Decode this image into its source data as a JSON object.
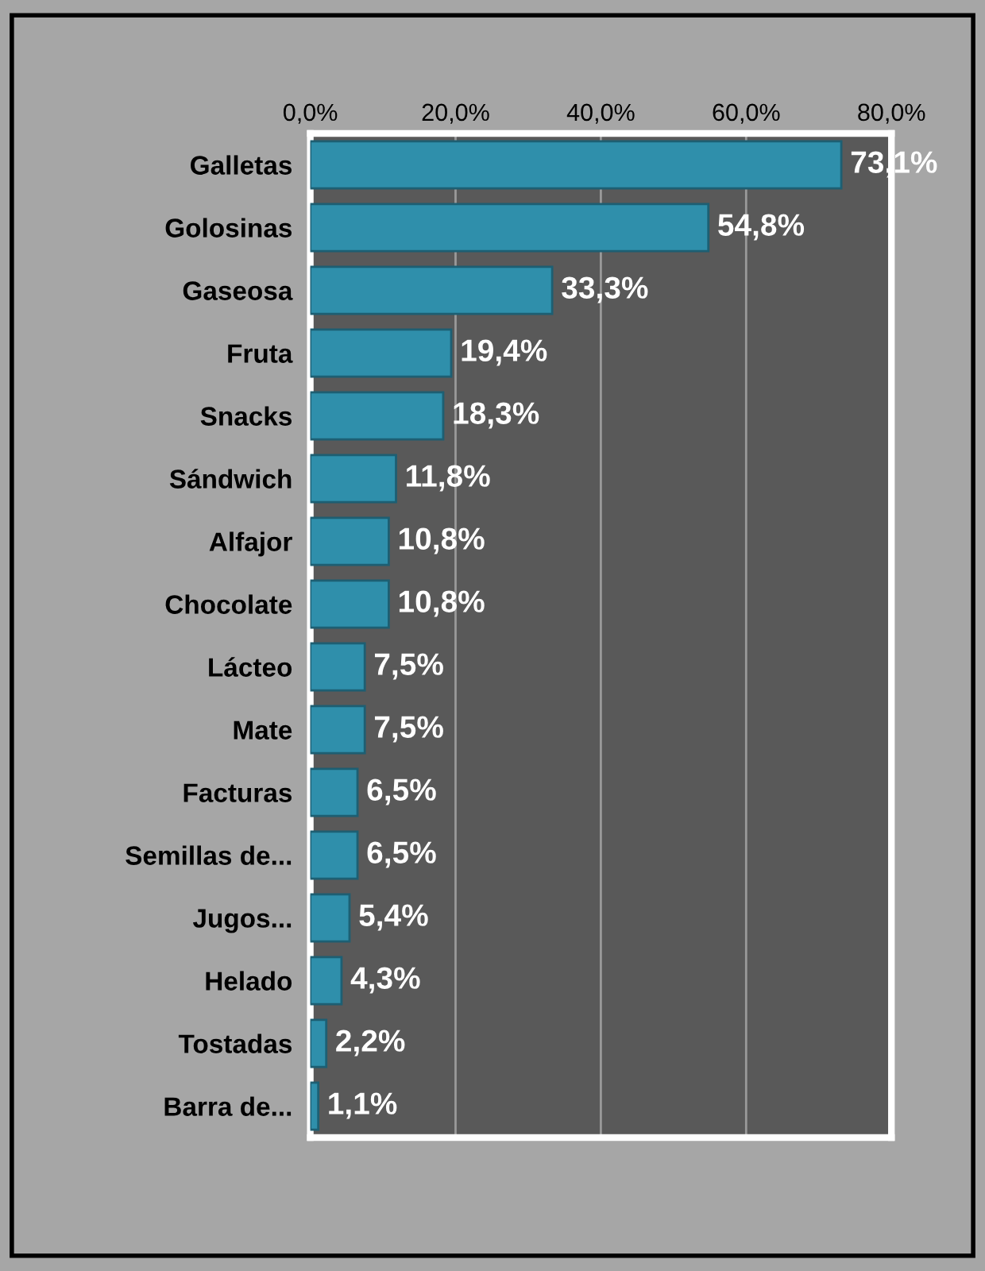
{
  "chart_data": {
    "type": "bar",
    "orientation": "horizontal",
    "categories": [
      "Galletas",
      "Golosinas",
      "Gaseosa",
      "Fruta",
      "Snacks",
      "Sándwich",
      "Alfajor",
      "Chocolate",
      "Lácteo",
      "Mate",
      "Facturas",
      "Semillas de...",
      "Jugos...",
      "Helado",
      "Tostadas",
      "Barra de..."
    ],
    "values": [
      73.1,
      54.8,
      33.3,
      19.4,
      18.3,
      11.8,
      10.8,
      10.8,
      7.5,
      7.5,
      6.5,
      6.5,
      5.4,
      4.3,
      2.2,
      1.1
    ],
    "value_labels": [
      "73,1%",
      "54,8%",
      "33,3%",
      "19,4%",
      "18,3%",
      "11,8%",
      "10,8%",
      "10,8%",
      "7,5%",
      "7,5%",
      "6,5%",
      "6,5%",
      "5,4%",
      "4,3%",
      "2,2%",
      "1,1%"
    ],
    "color": "#2f8fab",
    "xlim": [
      0,
      80
    ],
    "xticks": [
      {
        "value": 0,
        "label": "0,0%"
      },
      {
        "value": 20,
        "label": "20,0%"
      },
      {
        "value": 40,
        "label": "40,0%"
      },
      {
        "value": 60,
        "label": "60,0%"
      },
      {
        "value": 80,
        "label": "80,0%"
      }
    ],
    "grid": "x",
    "legend": false
  }
}
